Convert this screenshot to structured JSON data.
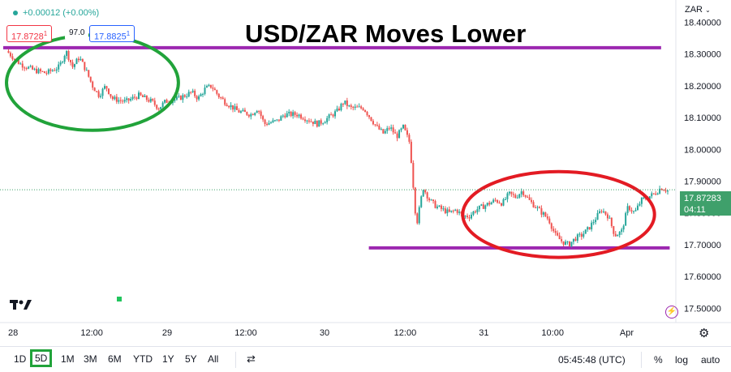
{
  "header": {
    "change_text": "+0.00012 (+0.00%)",
    "sell_price": "17.8728",
    "sell_suffix": "1",
    "spread": "97.0",
    "buy_price": "17.8825",
    "buy_suffix": "1",
    "currency_selector": "ZAR"
  },
  "chart_data": {
    "type": "candlestick",
    "title": "USD/ZAR Moves Lower",
    "y_axis": {
      "ticks": [
        "18.40000",
        "18.30000",
        "18.20000",
        "18.10000",
        "18.00000",
        "17.90000",
        "17.80000",
        "17.70000",
        "17.60000",
        "17.50000"
      ],
      "ylim": [
        17.46,
        18.46
      ]
    },
    "x_axis": {
      "ticks": [
        "28",
        "12:00",
        "29",
        "12:00",
        "30",
        "12:00",
        "31",
        "10:00",
        "Apr"
      ],
      "x_range": [
        0,
        100
      ]
    },
    "current_price": "17.87283",
    "countdown": "04:11",
    "price_series": [
      [
        0,
        18.31
      ],
      [
        2,
        18.27
      ],
      [
        4,
        18.25
      ],
      [
        6,
        18.24
      ],
      [
        8,
        18.26
      ],
      [
        9,
        18.31
      ],
      [
        10,
        18.26
      ],
      [
        11,
        18.29
      ],
      [
        12,
        18.25
      ],
      [
        13,
        18.2
      ],
      [
        14,
        18.17
      ],
      [
        15,
        18.2
      ],
      [
        16,
        18.16
      ],
      [
        18,
        18.15
      ],
      [
        20,
        18.17
      ],
      [
        22,
        18.15
      ],
      [
        23,
        18.13
      ],
      [
        24,
        18.15
      ],
      [
        26,
        18.16
      ],
      [
        28,
        18.18
      ],
      [
        29,
        18.16
      ],
      [
        30,
        18.19
      ],
      [
        31,
        18.2
      ],
      [
        32,
        18.17
      ],
      [
        33,
        18.15
      ],
      [
        35,
        18.12
      ],
      [
        37,
        18.11
      ],
      [
        38,
        18.13
      ],
      [
        39,
        18.08
      ],
      [
        41,
        18.09
      ],
      [
        42,
        18.11
      ],
      [
        44,
        18.11
      ],
      [
        45,
        18.1
      ],
      [
        47,
        18.08
      ],
      [
        48,
        18.09
      ],
      [
        50,
        18.12
      ],
      [
        51,
        18.15
      ],
      [
        52,
        18.13
      ],
      [
        54,
        18.13
      ],
      [
        55,
        18.1
      ],
      [
        56,
        18.07
      ],
      [
        57,
        18.05
      ],
      [
        58,
        18.07
      ],
      [
        59,
        18.04
      ],
      [
        60,
        18.07
      ],
      [
        61,
        18.02
      ],
      [
        62,
        17.76
      ],
      [
        63,
        17.88
      ],
      [
        64,
        17.84
      ],
      [
        65,
        17.82
      ],
      [
        66,
        17.81
      ],
      [
        67,
        17.8
      ],
      [
        68,
        17.81
      ],
      [
        69,
        17.79
      ],
      [
        70,
        17.79
      ],
      [
        71,
        17.81
      ],
      [
        72,
        17.82
      ],
      [
        73,
        17.83
      ],
      [
        74,
        17.84
      ],
      [
        75,
        17.83
      ],
      [
        76,
        17.86
      ],
      [
        77,
        17.85
      ],
      [
        78,
        17.87
      ],
      [
        79,
        17.84
      ],
      [
        80,
        17.82
      ],
      [
        81,
        17.8
      ],
      [
        82,
        17.78
      ],
      [
        83,
        17.73
      ],
      [
        84,
        17.71
      ],
      [
        85,
        17.7
      ],
      [
        86,
        17.72
      ],
      [
        87,
        17.73
      ],
      [
        88,
        17.75
      ],
      [
        89,
        17.78
      ],
      [
        90,
        17.81
      ],
      [
        91,
        17.79
      ],
      [
        92,
        17.73
      ],
      [
        93,
        17.74
      ],
      [
        94,
        17.82
      ],
      [
        95,
        17.8
      ],
      [
        96,
        17.84
      ],
      [
        97,
        17.85
      ],
      [
        98,
        17.86
      ],
      [
        99,
        17.88
      ],
      [
        100,
        17.87
      ]
    ],
    "horizontal_lines": [
      18.32,
      17.69
    ],
    "annotations": [
      {
        "shape": "ellipse",
        "color": "#21a33a",
        "x_range": [
          0,
          26
        ],
        "y_range": [
          18.06,
          18.36
        ]
      },
      {
        "shape": "ellipse",
        "color": "#e31b23",
        "x_range": [
          69,
          98
        ],
        "y_range": [
          17.66,
          17.93
        ]
      }
    ],
    "colors": {
      "up": "#26a69a",
      "down": "#ef5350",
      "support": "#9c27b0",
      "green": "#21a33a",
      "red": "#e31b23"
    }
  },
  "range_tabs": [
    "1D",
    "5D",
    "1M",
    "3M",
    "6M",
    "YTD",
    "1Y",
    "5Y",
    "All"
  ],
  "selected_range": "5D",
  "clock": "05:45:48 (UTC)",
  "options": {
    "percent": "%",
    "log": "log",
    "auto": "auto"
  },
  "icons": {
    "gear": "gear-icon",
    "flash": "lightning-icon",
    "replay": "replay-icon",
    "logo": "tradingview-logo-icon"
  }
}
